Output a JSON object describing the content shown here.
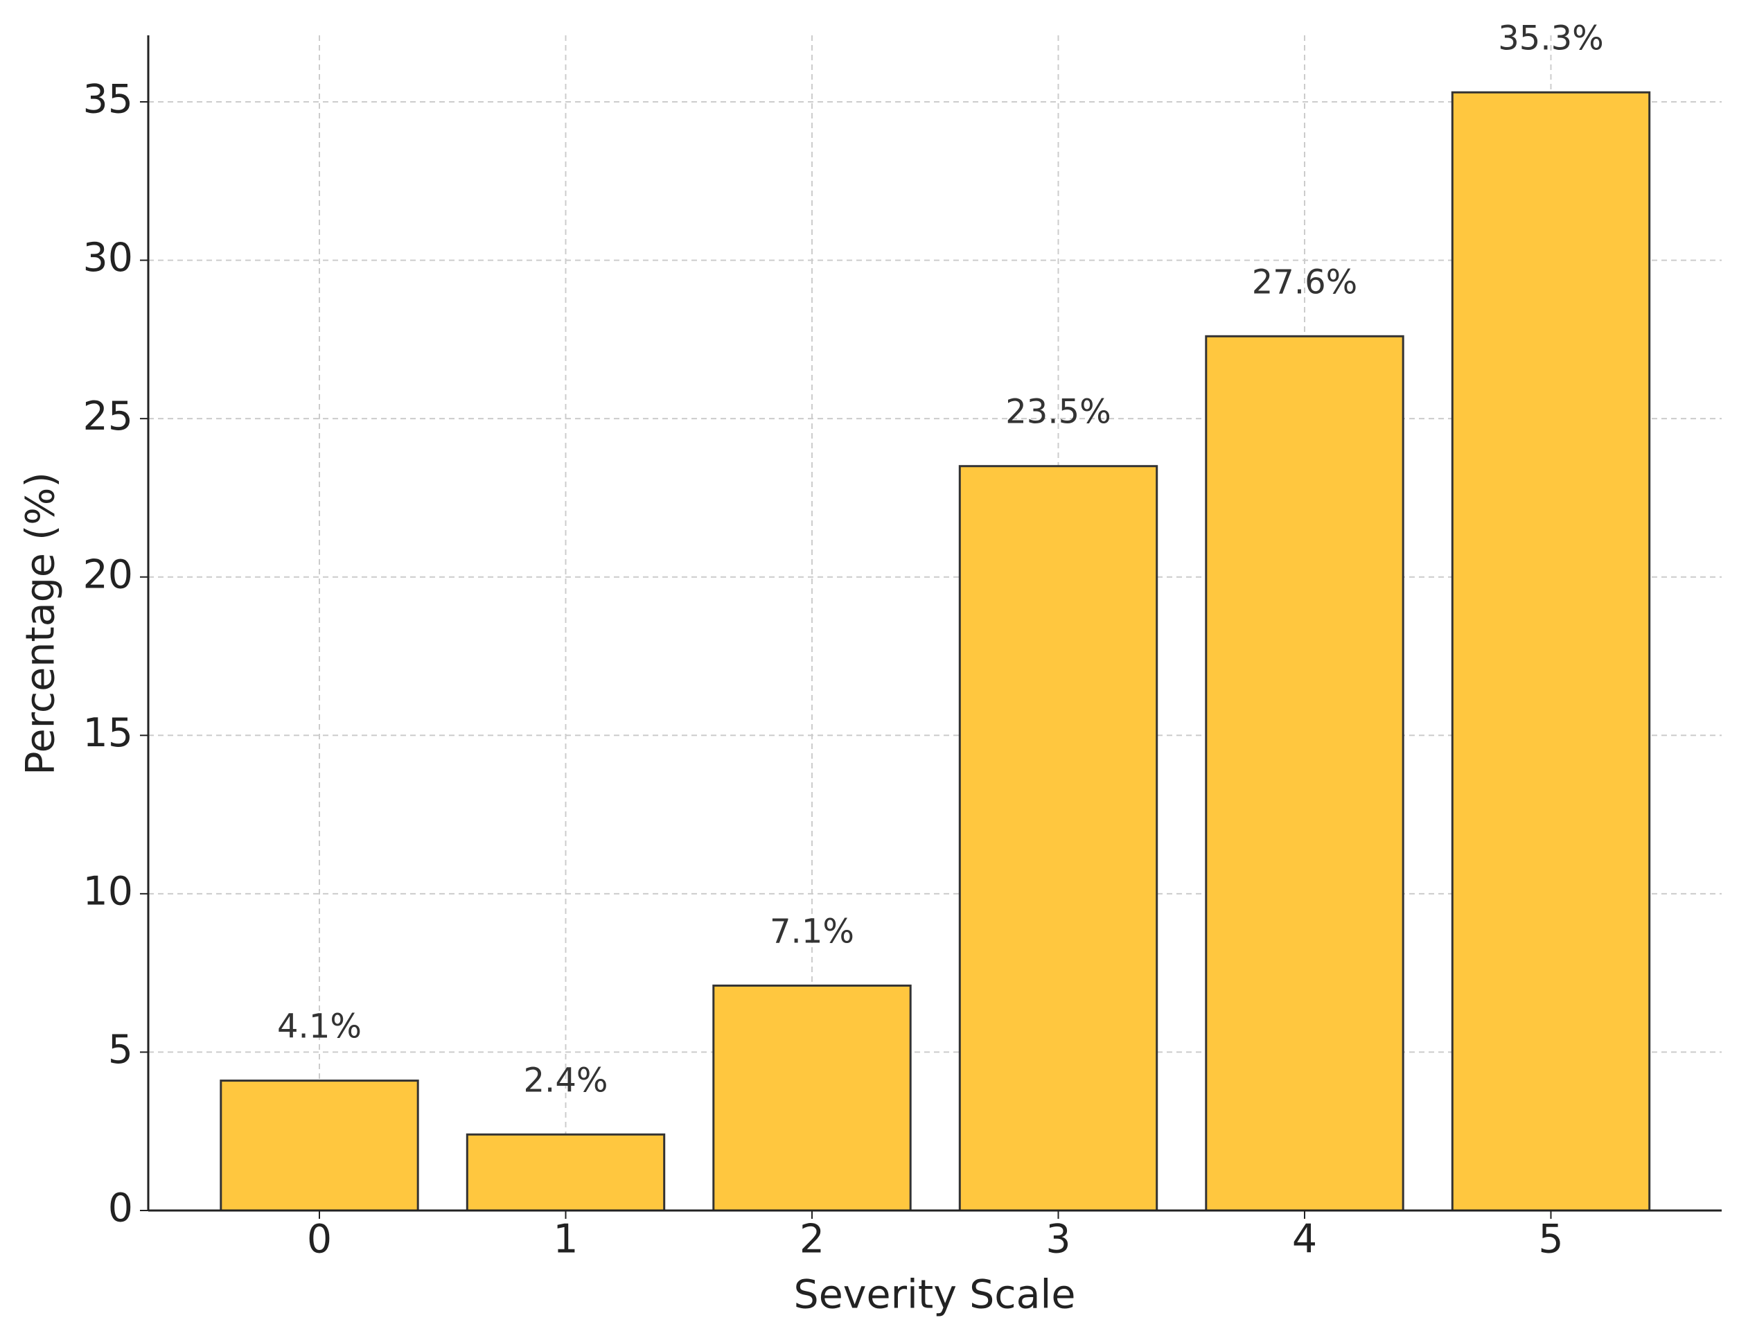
{
  "chart_data": {
    "type": "bar",
    "x_label": "Severity Scale",
    "y_label": "Percentage (%)",
    "categories": [
      "0",
      "1",
      "2",
      "3",
      "4",
      "5"
    ],
    "values": [
      4.1,
      2.4,
      7.1,
      23.5,
      27.6,
      35.3
    ],
    "value_labels": [
      "4.1%",
      "2.4%",
      "7.1%",
      "23.5%",
      "27.6%",
      "35.3%"
    ],
    "color": "#ffc73f",
    "ylim": [
      0,
      37.1
    ],
    "yticks": [
      0,
      5,
      10,
      15,
      20,
      25,
      30,
      35
    ],
    "grid": true
  }
}
